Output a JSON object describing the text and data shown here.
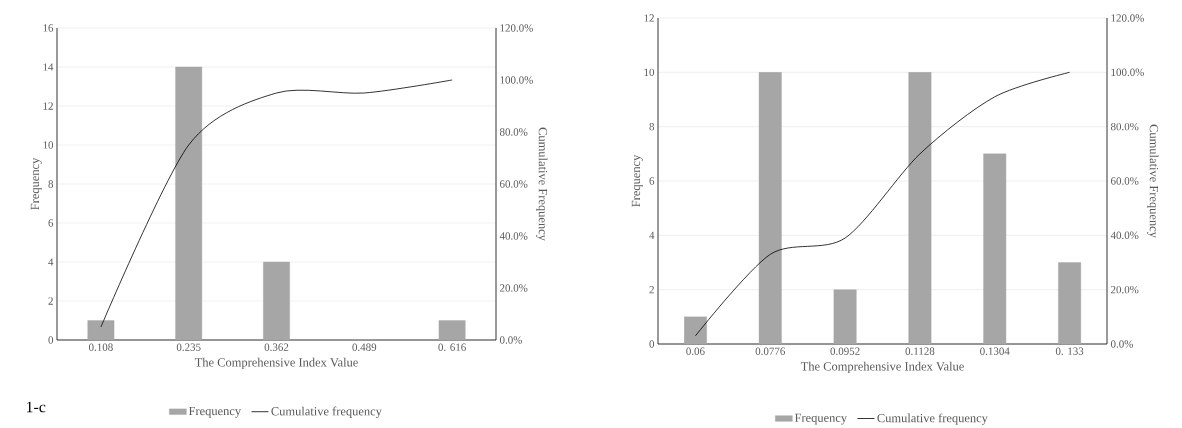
{
  "chart_data": [
    {
      "type": "bar",
      "categories": [
        "0.108",
        "0.235",
        "0.362",
        "0.489",
        "0. 616"
      ],
      "xlabel": "The Comprehensive Index Value",
      "ylabel": "Frequency",
      "y2label": "Cumulative Frequency",
      "series": [
        {
          "name": "Frequency",
          "color": "#a6a6a6",
          "values": [
            1,
            14,
            4,
            0,
            1
          ]
        },
        {
          "name": "Cumulative frequency",
          "type": "line",
          "axis": "y2",
          "color": "#000000",
          "values": [
            5,
            75,
            95,
            95,
            100
          ]
        }
      ],
      "ylim": [
        0,
        16
      ],
      "yticks": [
        0,
        2,
        4,
        6,
        8,
        10,
        12,
        14,
        16
      ],
      "y2lim": [
        0,
        120
      ],
      "y2ticks": [
        {
          "value": 0,
          "label": "0.0%"
        },
        {
          "value": 20,
          "label": "20.0%"
        },
        {
          "value": 40,
          "label": "40.0%"
        },
        {
          "value": 60,
          "label": "60.0%"
        },
        {
          "value": 80,
          "label": "80.0%"
        },
        {
          "value": 100,
          "label": "100.0%"
        },
        {
          "value": 120,
          "label": "120.0%"
        }
      ],
      "grid": "y",
      "legend": "bottom",
      "annotations": [
        "1-c"
      ]
    },
    {
      "type": "bar",
      "categories": [
        "0.06",
        "0.0776",
        "0.0952",
        "0.1128",
        "0.1304",
        "0. 133"
      ],
      "xlabel": "The Comprehensive Index Value",
      "ylabel": "Frequency",
      "y2label": "Cumulative Frequency",
      "series": [
        {
          "name": "Frequency",
          "color": "#a6a6a6",
          "values": [
            1,
            10,
            2,
            10,
            7,
            3
          ]
        },
        {
          "name": "Cumulative frequency",
          "type": "line",
          "axis": "y2",
          "color": "#000000",
          "values": [
            3,
            33,
            39,
            70,
            91,
            100
          ]
        }
      ],
      "ylim": [
        0,
        12
      ],
      "yticks": [
        0,
        2,
        4,
        6,
        8,
        10,
        12
      ],
      "y2lim": [
        0,
        120
      ],
      "y2ticks": [
        {
          "value": 0,
          "label": "0.0%"
        },
        {
          "value": 20,
          "label": "20.0%"
        },
        {
          "value": 40,
          "label": "40.0%"
        },
        {
          "value": 60,
          "label": "60.0%"
        },
        {
          "value": 80,
          "label": "80.0%"
        },
        {
          "value": 100,
          "label": "100.0%"
        },
        {
          "value": 120,
          "label": "120.0%"
        }
      ],
      "grid": "y",
      "legend": "bottom"
    }
  ]
}
